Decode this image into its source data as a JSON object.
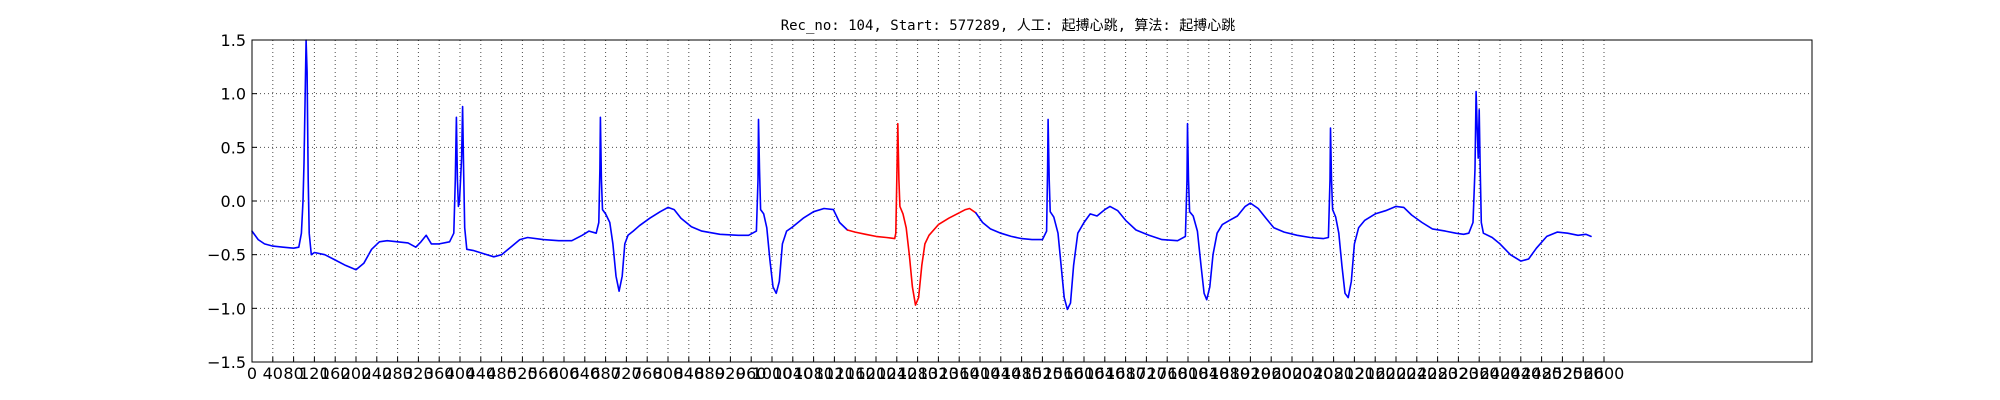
{
  "chart_data": {
    "type": "line",
    "title": "Rec_no: 104, Start: 577289, 人工: 起搏心跳, 算法: 起搏心跳",
    "xlabel": "",
    "ylabel": "",
    "xlim": [
      0,
      3000
    ],
    "ylim": [
      -1.5,
      1.5
    ],
    "grid": true,
    "x_ticks": [
      0,
      40,
      80,
      120,
      160,
      200,
      240,
      280,
      320,
      360,
      400,
      440,
      480,
      520,
      560,
      600,
      640,
      680,
      720,
      760,
      800,
      840,
      880,
      920,
      960,
      1000,
      1040,
      1080,
      1120,
      1160,
      1200,
      1240,
      1280,
      1320,
      1360,
      1400,
      1440,
      1480,
      1520,
      1560,
      1600,
      1640,
      1680,
      1720,
      1760,
      1800,
      1840,
      1880,
      1920,
      1960,
      2000,
      2040,
      2080,
      2120,
      2160,
      2200,
      2240,
      2280,
      2320,
      2360,
      2400,
      2440,
      2480,
      2520,
      2560,
      2600
    ],
    "x_tick_labels": [
      "0",
      "40",
      "80",
      "120",
      "160",
      "200",
      "240",
      "280",
      "320",
      "360",
      "400",
      "440",
      "480",
      "520",
      "560",
      "600",
      "640",
      "680",
      "720",
      "760",
      "800",
      "840",
      "880",
      "920",
      "960",
      "1000",
      "1040",
      "1080",
      "1120",
      "1160",
      "1200",
      "1240",
      "1280",
      "1320",
      "1360",
      "1400",
      "1440",
      "1480",
      "1520",
      "1560",
      "1600",
      "1640",
      "1680",
      "1720",
      "1760",
      "1800",
      "1840",
      "1880",
      "1920",
      "1960",
      "2000",
      "2040",
      "2080",
      "2120",
      "2160",
      "2200",
      "2240",
      "2280",
      "2320",
      "2360",
      "2400",
      "2440",
      "2480",
      "2520",
      "2560",
      "2600"
    ],
    "y_ticks": [
      1.5,
      1.0,
      0.5,
      0.0,
      -0.5,
      -1.0,
      -1.5
    ],
    "y_tick_labels": [
      "1.5",
      "1.0",
      "0.5",
      "0.0",
      "−0.5",
      "−1.0",
      "−1.5"
    ],
    "series": [
      {
        "color": "#0000ff",
        "points": [
          [
            0,
            -0.28
          ],
          [
            12,
            -0.36
          ],
          [
            24,
            -0.4
          ],
          [
            40,
            -0.42
          ],
          [
            60,
            -0.43
          ],
          [
            80,
            -0.44
          ],
          [
            90,
            -0.43
          ],
          [
            95,
            -0.3
          ],
          [
            98,
            0.0
          ],
          [
            100,
            0.35
          ],
          [
            102,
            0.9
          ],
          [
            104,
            1.5
          ],
          [
            106,
            1.2
          ],
          [
            108,
            0.2
          ],
          [
            110,
            -0.3
          ],
          [
            114,
            -0.5
          ],
          [
            120,
            -0.48
          ],
          [
            140,
            -0.5
          ],
          [
            160,
            -0.55
          ],
          [
            180,
            -0.6
          ],
          [
            200,
            -0.64
          ],
          [
            215,
            -0.58
          ],
          [
            230,
            -0.45
          ],
          [
            245,
            -0.38
          ],
          [
            260,
            -0.37
          ],
          [
            280,
            -0.38
          ],
          [
            300,
            -0.39
          ],
          [
            315,
            -0.43
          ],
          [
            325,
            -0.38
          ],
          [
            335,
            -0.32
          ],
          [
            345,
            -0.4
          ],
          [
            360,
            -0.4
          ],
          [
            380,
            -0.38
          ],
          [
            388,
            -0.3
          ],
          [
            391,
            0.2
          ],
          [
            393,
            0.78
          ],
          [
            395,
            0.2
          ],
          [
            397,
            -0.05
          ],
          [
            399,
            0.0
          ],
          [
            403,
            0.4
          ],
          [
            405,
            0.88
          ],
          [
            407,
            0.3
          ],
          [
            409,
            -0.25
          ],
          [
            413,
            -0.45
          ],
          [
            425,
            -0.46
          ],
          [
            445,
            -0.49
          ],
          [
            465,
            -0.52
          ],
          [
            480,
            -0.5
          ],
          [
            500,
            -0.42
          ],
          [
            515,
            -0.36
          ],
          [
            530,
            -0.34
          ],
          [
            560,
            -0.36
          ],
          [
            590,
            -0.37
          ],
          [
            615,
            -0.37
          ],
          [
            635,
            -0.32
          ],
          [
            648,
            -0.28
          ],
          [
            662,
            -0.3
          ],
          [
            667,
            -0.2
          ],
          [
            669,
            0.3
          ],
          [
            670,
            0.78
          ],
          [
            672,
            0.2
          ],
          [
            674,
            -0.08
          ],
          [
            680,
            -0.12
          ],
          [
            688,
            -0.2
          ],
          [
            694,
            -0.4
          ],
          [
            700,
            -0.7
          ],
          [
            706,
            -0.84
          ],
          [
            712,
            -0.7
          ],
          [
            717,
            -0.4
          ],
          [
            723,
            -0.32
          ],
          [
            733,
            -0.28
          ],
          [
            745,
            -0.23
          ],
          [
            765,
            -0.16
          ],
          [
            785,
            -0.1
          ],
          [
            800,
            -0.06
          ],
          [
            812,
            -0.08
          ],
          [
            825,
            -0.16
          ],
          [
            845,
            -0.24
          ],
          [
            865,
            -0.28
          ],
          [
            900,
            -0.31
          ],
          [
            935,
            -0.32
          ],
          [
            955,
            -0.32
          ],
          [
            970,
            -0.28
          ],
          [
            973,
            0.2
          ],
          [
            974,
            0.76
          ],
          [
            976,
            0.3
          ],
          [
            978,
            -0.08
          ],
          [
            984,
            -0.12
          ],
          [
            990,
            -0.25
          ],
          [
            996,
            -0.55
          ],
          [
            1002,
            -0.8
          ],
          [
            1008,
            -0.86
          ],
          [
            1014,
            -0.75
          ],
          [
            1020,
            -0.4
          ],
          [
            1028,
            -0.28
          ],
          [
            1040,
            -0.24
          ],
          [
            1060,
            -0.16
          ],
          [
            1080,
            -0.1
          ],
          [
            1100,
            -0.07
          ],
          [
            1118,
            -0.08
          ],
          [
            1130,
            -0.2
          ],
          [
            1145,
            -0.27
          ]
        ]
      },
      {
        "color": "#ff0000",
        "points": [
          [
            1145,
            -0.27
          ],
          [
            1160,
            -0.29
          ],
          [
            1180,
            -0.31
          ],
          [
            1200,
            -0.33
          ],
          [
            1220,
            -0.34
          ],
          [
            1236,
            -0.35
          ],
          [
            1238,
            -0.3
          ],
          [
            1240,
            0.2
          ],
          [
            1242,
            0.72
          ],
          [
            1244,
            0.2
          ],
          [
            1246,
            -0.05
          ],
          [
            1252,
            -0.12
          ],
          [
            1258,
            -0.25
          ],
          [
            1264,
            -0.5
          ],
          [
            1270,
            -0.8
          ],
          [
            1276,
            -0.97
          ],
          [
            1282,
            -0.9
          ],
          [
            1288,
            -0.6
          ],
          [
            1294,
            -0.4
          ],
          [
            1302,
            -0.32
          ],
          [
            1320,
            -0.22
          ],
          [
            1340,
            -0.16
          ],
          [
            1360,
            -0.11
          ],
          [
            1372,
            -0.08
          ],
          [
            1380,
            -0.07
          ],
          [
            1392,
            -0.11
          ]
        ]
      },
      {
        "color": "#0000ff",
        "points": [
          [
            1392,
            -0.11
          ],
          [
            1405,
            -0.2
          ],
          [
            1420,
            -0.26
          ],
          [
            1440,
            -0.3
          ],
          [
            1460,
            -0.33
          ],
          [
            1480,
            -0.35
          ],
          [
            1500,
            -0.36
          ],
          [
            1520,
            -0.36
          ],
          [
            1528,
            -0.28
          ],
          [
            1530,
            0.3
          ],
          [
            1531,
            0.76
          ],
          [
            1533,
            0.2
          ],
          [
            1535,
            -0.1
          ],
          [
            1542,
            -0.15
          ],
          [
            1550,
            -0.3
          ],
          [
            1556,
            -0.6
          ],
          [
            1562,
            -0.9
          ],
          [
            1568,
            -1.01
          ],
          [
            1574,
            -0.95
          ],
          [
            1580,
            -0.6
          ],
          [
            1588,
            -0.3
          ],
          [
            1600,
            -0.2
          ],
          [
            1612,
            -0.12
          ],
          [
            1625,
            -0.14
          ],
          [
            1640,
            -0.08
          ],
          [
            1650,
            -0.05
          ],
          [
            1665,
            -0.09
          ],
          [
            1680,
            -0.18
          ],
          [
            1700,
            -0.27
          ],
          [
            1725,
            -0.32
          ],
          [
            1750,
            -0.36
          ],
          [
            1780,
            -0.37
          ],
          [
            1795,
            -0.33
          ],
          [
            1798,
            0.2
          ],
          [
            1799,
            0.72
          ],
          [
            1801,
            0.2
          ],
          [
            1803,
            -0.1
          ],
          [
            1810,
            -0.14
          ],
          [
            1818,
            -0.28
          ],
          [
            1825,
            -0.6
          ],
          [
            1831,
            -0.86
          ],
          [
            1836,
            -0.92
          ],
          [
            1842,
            -0.8
          ],
          [
            1848,
            -0.5
          ],
          [
            1856,
            -0.3
          ],
          [
            1866,
            -0.22
          ],
          [
            1880,
            -0.18
          ],
          [
            1895,
            -0.14
          ],
          [
            1910,
            -0.05
          ],
          [
            1920,
            -0.02
          ],
          [
            1935,
            -0.07
          ],
          [
            1950,
            -0.16
          ],
          [
            1965,
            -0.25
          ],
          [
            1985,
            -0.29
          ],
          [
            2010,
            -0.32
          ],
          [
            2035,
            -0.34
          ],
          [
            2060,
            -0.35
          ],
          [
            2070,
            -0.34
          ],
          [
            2073,
            0.2
          ],
          [
            2074,
            0.68
          ],
          [
            2076,
            0.2
          ],
          [
            2078,
            -0.08
          ],
          [
            2084,
            -0.15
          ],
          [
            2090,
            -0.3
          ],
          [
            2096,
            -0.6
          ],
          [
            2102,
            -0.86
          ],
          [
            2108,
            -0.9
          ],
          [
            2114,
            -0.75
          ],
          [
            2120,
            -0.4
          ],
          [
            2128,
            -0.25
          ],
          [
            2140,
            -0.18
          ],
          [
            2160,
            -0.12
          ],
          [
            2180,
            -0.09
          ],
          [
            2200,
            -0.05
          ],
          [
            2215,
            -0.06
          ],
          [
            2230,
            -0.13
          ],
          [
            2250,
            -0.2
          ],
          [
            2270,
            -0.26
          ],
          [
            2295,
            -0.28
          ],
          [
            2315,
            -0.3
          ],
          [
            2330,
            -0.31
          ],
          [
            2340,
            -0.3
          ],
          [
            2348,
            -0.2
          ],
          [
            2352,
            0.3
          ],
          [
            2354,
            1.02
          ],
          [
            2356,
            0.7
          ],
          [
            2358,
            0.4
          ],
          [
            2360,
            0.85
          ],
          [
            2362,
            0.3
          ],
          [
            2364,
            -0.2
          ],
          [
            2368,
            -0.3
          ],
          [
            2385,
            -0.34
          ],
          [
            2400,
            -0.4
          ],
          [
            2420,
            -0.5
          ],
          [
            2440,
            -0.56
          ],
          [
            2455,
            -0.54
          ],
          [
            2470,
            -0.44
          ],
          [
            2490,
            -0.33
          ],
          [
            2510,
            -0.29
          ],
          [
            2530,
            -0.3
          ],
          [
            2550,
            -0.32
          ],
          [
            2565,
            -0.31
          ],
          [
            2575,
            -0.33
          ]
        ]
      }
    ]
  }
}
